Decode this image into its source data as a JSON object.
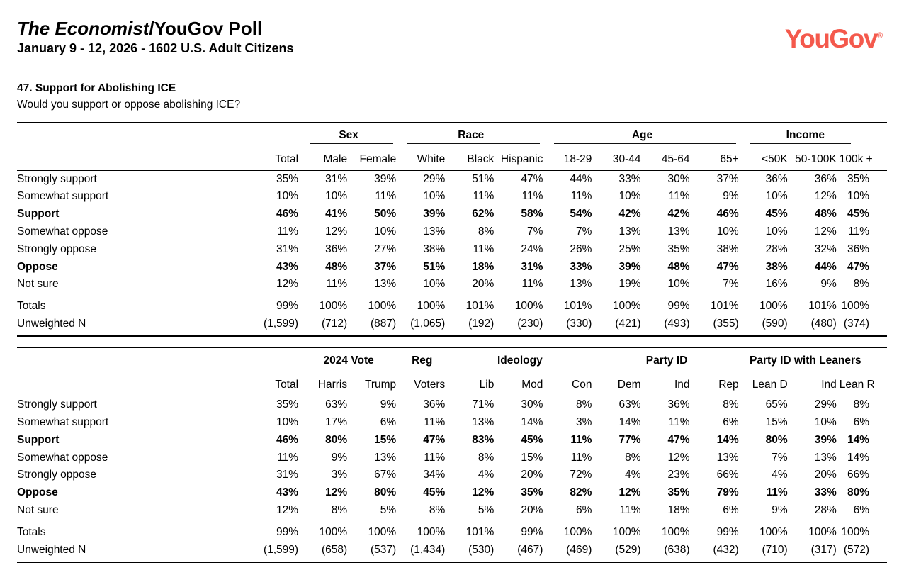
{
  "header": {
    "title_italic": "The Economist",
    "title_rest": "/YouGov Poll",
    "subtitle": "January 9 - 12, 2026 - 1602 U.S. Adult Citizens",
    "logo_text": "YouGov",
    "logo_mark": "®",
    "logo_color": "#F4594C"
  },
  "question": {
    "title": "47. Support for Abolishing ICE",
    "text": "Would you support or oppose abolishing ICE?"
  },
  "tables": [
    {
      "groups": [
        {
          "label": "",
          "cols": [
            "Total"
          ]
        },
        {
          "label": "Sex",
          "cols": [
            "Male",
            "Female"
          ]
        },
        {
          "label": "Race",
          "cols": [
            "White",
            "Black",
            "Hispanic"
          ]
        },
        {
          "label": "Age",
          "cols": [
            "18-29",
            "30-44",
            "45-64",
            "65+"
          ]
        },
        {
          "label": "Income",
          "cols": [
            "<50K",
            "50-100K",
            "100k +"
          ]
        }
      ],
      "rows": [
        {
          "label": "Strongly support",
          "bold": false,
          "values": [
            "35%",
            "31%",
            "39%",
            "29%",
            "51%",
            "47%",
            "44%",
            "33%",
            "30%",
            "37%",
            "36%",
            "36%",
            "35%"
          ]
        },
        {
          "label": "Somewhat support",
          "bold": false,
          "values": [
            "10%",
            "10%",
            "11%",
            "10%",
            "11%",
            "11%",
            "11%",
            "10%",
            "11%",
            "9%",
            "10%",
            "12%",
            "10%"
          ]
        },
        {
          "label": "Support",
          "bold": true,
          "values": [
            "46%",
            "41%",
            "50%",
            "39%",
            "62%",
            "58%",
            "54%",
            "42%",
            "42%",
            "46%",
            "45%",
            "48%",
            "45%"
          ]
        },
        {
          "label": "Somewhat oppose",
          "bold": false,
          "values": [
            "11%",
            "12%",
            "10%",
            "13%",
            "8%",
            "7%",
            "7%",
            "13%",
            "13%",
            "10%",
            "10%",
            "12%",
            "11%"
          ]
        },
        {
          "label": "Strongly oppose",
          "bold": false,
          "values": [
            "31%",
            "36%",
            "27%",
            "38%",
            "11%",
            "24%",
            "26%",
            "25%",
            "35%",
            "38%",
            "28%",
            "32%",
            "36%"
          ]
        },
        {
          "label": "Oppose",
          "bold": true,
          "values": [
            "43%",
            "48%",
            "37%",
            "51%",
            "18%",
            "31%",
            "33%",
            "39%",
            "48%",
            "47%",
            "38%",
            "44%",
            "47%"
          ]
        },
        {
          "label": "Not sure",
          "bold": false,
          "values": [
            "12%",
            "11%",
            "13%",
            "10%",
            "20%",
            "11%",
            "13%",
            "19%",
            "10%",
            "7%",
            "16%",
            "9%",
            "8%"
          ]
        }
      ],
      "footer_rows": [
        {
          "label": "Totals",
          "values": [
            "99%",
            "100%",
            "100%",
            "100%",
            "101%",
            "100%",
            "101%",
            "100%",
            "99%",
            "101%",
            "100%",
            "101%",
            "100%"
          ]
        },
        {
          "label": "Unweighted N",
          "values": [
            "(1,599)",
            "(712)",
            "(887)",
            "(1,065)",
            "(192)",
            "(230)",
            "(330)",
            "(421)",
            "(493)",
            "(355)",
            "(590)",
            "(480)",
            "(374)"
          ]
        }
      ]
    },
    {
      "groups": [
        {
          "label": "",
          "cols": [
            "Total"
          ]
        },
        {
          "label": "2024 Vote",
          "cols": [
            "Harris",
            "Trump"
          ]
        },
        {
          "label": "Reg",
          "cols": [
            "Voters"
          ]
        },
        {
          "label": "Ideology",
          "cols": [
            "Lib",
            "Mod",
            "Con"
          ]
        },
        {
          "label": "Party ID",
          "cols": [
            "Dem",
            "Ind",
            "Rep"
          ]
        },
        {
          "label": "Party ID with Leaners",
          "cols": [
            "Lean D",
            "Ind",
            "Lean R"
          ]
        }
      ],
      "rows": [
        {
          "label": "Strongly support",
          "bold": false,
          "values": [
            "35%",
            "63%",
            "9%",
            "36%",
            "71%",
            "30%",
            "8%",
            "63%",
            "36%",
            "8%",
            "65%",
            "29%",
            "8%"
          ]
        },
        {
          "label": "Somewhat support",
          "bold": false,
          "values": [
            "10%",
            "17%",
            "6%",
            "11%",
            "13%",
            "14%",
            "3%",
            "14%",
            "11%",
            "6%",
            "15%",
            "10%",
            "6%"
          ]
        },
        {
          "label": "Support",
          "bold": true,
          "values": [
            "46%",
            "80%",
            "15%",
            "47%",
            "83%",
            "45%",
            "11%",
            "77%",
            "47%",
            "14%",
            "80%",
            "39%",
            "14%"
          ]
        },
        {
          "label": "Somewhat oppose",
          "bold": false,
          "values": [
            "11%",
            "9%",
            "13%",
            "11%",
            "8%",
            "15%",
            "11%",
            "8%",
            "12%",
            "13%",
            "7%",
            "13%",
            "14%"
          ]
        },
        {
          "label": "Strongly oppose",
          "bold": false,
          "values": [
            "31%",
            "3%",
            "67%",
            "34%",
            "4%",
            "20%",
            "72%",
            "4%",
            "23%",
            "66%",
            "4%",
            "20%",
            "66%"
          ]
        },
        {
          "label": "Oppose",
          "bold": true,
          "values": [
            "43%",
            "12%",
            "80%",
            "45%",
            "12%",
            "35%",
            "82%",
            "12%",
            "35%",
            "79%",
            "11%",
            "33%",
            "80%"
          ]
        },
        {
          "label": "Not sure",
          "bold": false,
          "values": [
            "12%",
            "8%",
            "5%",
            "8%",
            "5%",
            "20%",
            "6%",
            "11%",
            "18%",
            "6%",
            "9%",
            "28%",
            "6%"
          ]
        }
      ],
      "footer_rows": [
        {
          "label": "Totals",
          "values": [
            "99%",
            "100%",
            "100%",
            "100%",
            "101%",
            "99%",
            "100%",
            "100%",
            "100%",
            "99%",
            "100%",
            "100%",
            "100%"
          ]
        },
        {
          "label": "Unweighted N",
          "values": [
            "(1,599)",
            "(658)",
            "(537)",
            "(1,434)",
            "(530)",
            "(467)",
            "(469)",
            "(529)",
            "(638)",
            "(432)",
            "(710)",
            "(317)",
            "(572)"
          ]
        }
      ]
    }
  ]
}
